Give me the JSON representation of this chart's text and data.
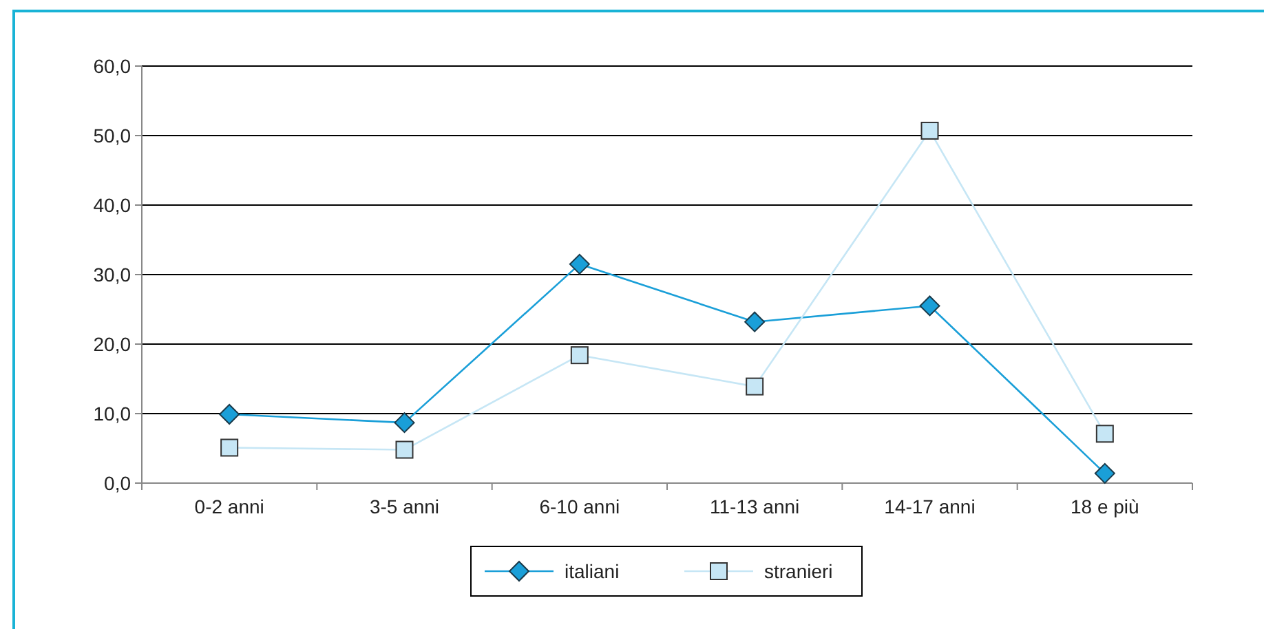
{
  "chart_data": {
    "type": "line",
    "categories": [
      "0-2 anni",
      "3-5 anni",
      "6-10 anni",
      "11-13 anni",
      "14-17 anni",
      "18 e più"
    ],
    "series": [
      {
        "name": "italiani",
        "color": "#1a9fd8",
        "marker": "diamond",
        "values": [
          9.9,
          8.7,
          31.5,
          23.2,
          25.5,
          1.4
        ]
      },
      {
        "name": "stranieri",
        "color": "#c6e6f5",
        "marker": "square",
        "values": [
          5.1,
          4.8,
          18.4,
          13.9,
          50.7,
          7.1
        ]
      }
    ],
    "ylim": [
      0,
      60
    ],
    "yticks": [
      {
        "value": 0,
        "label": "0,0"
      },
      {
        "value": 10,
        "label": "10,0"
      },
      {
        "value": 20,
        "label": "20,0"
      },
      {
        "value": 30,
        "label": "30,0"
      },
      {
        "value": 40,
        "label": "40,0"
      },
      {
        "value": 50,
        "label": "50,0"
      },
      {
        "value": 60,
        "label": "60,0"
      }
    ],
    "grid": "y",
    "legend": "bottom"
  }
}
